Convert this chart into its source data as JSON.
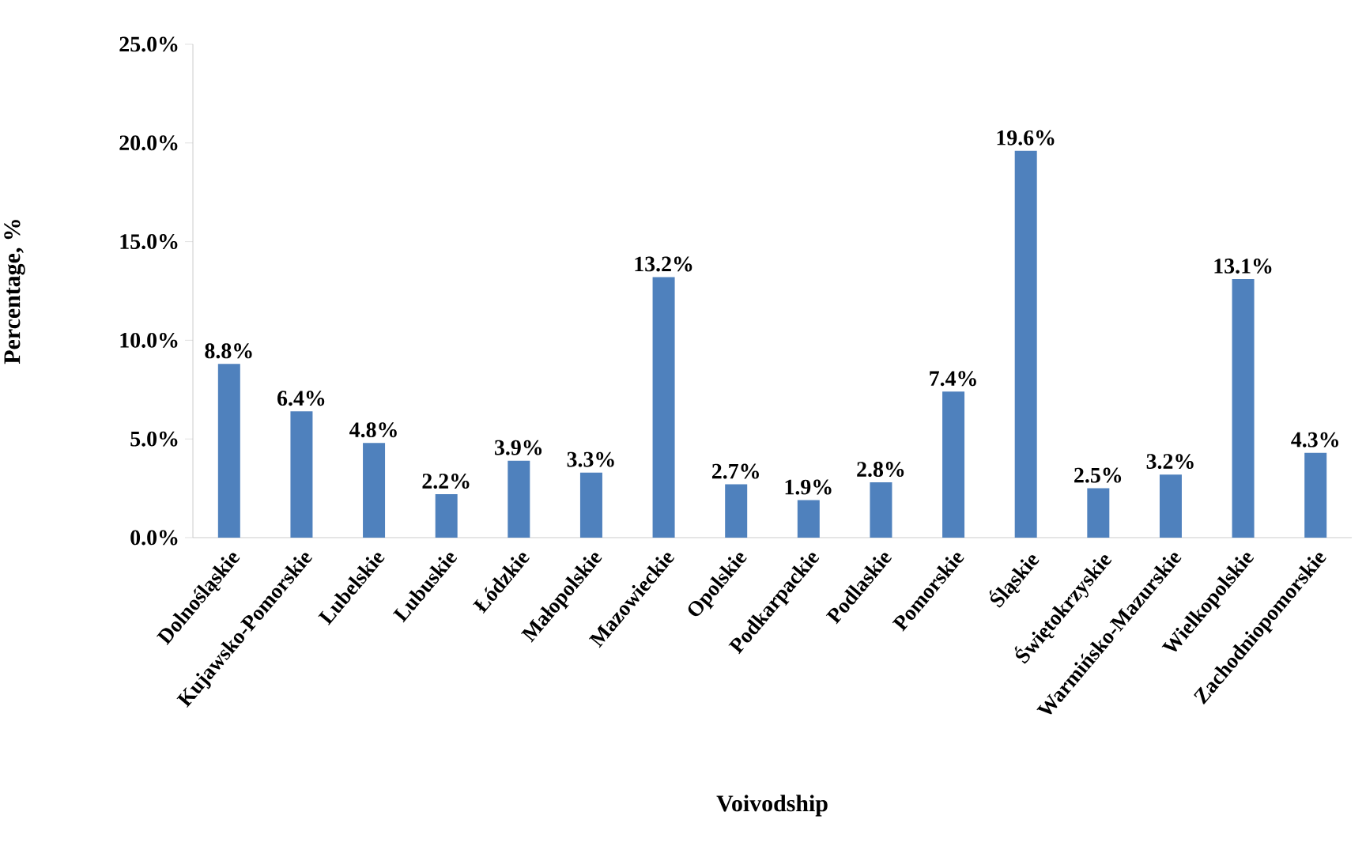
{
  "chart_data": {
    "type": "bar",
    "xlabel": "Voivodship",
    "ylabel": "Percentage, %",
    "categories": [
      "Dolnośląskie",
      "Kujawsko-Pomorskie",
      "Lubelskie",
      "Lubuskie",
      "Łódzkie",
      "Małopolskie",
      "Mazowieckie",
      "Opolskie",
      "Podkarpackie",
      "Podlaskie",
      "Pomorskie",
      "Śląskie",
      "Świętokrzyskie",
      "Warmińsko-Mazurskie",
      "Wielkopolskie",
      "Zachodniopomorskie"
    ],
    "values": [
      8.8,
      6.4,
      4.8,
      2.2,
      3.9,
      3.3,
      13.2,
      2.7,
      1.9,
      2.8,
      7.4,
      19.6,
      2.5,
      3.2,
      13.1,
      4.3
    ],
    "value_labels": [
      "8.8%",
      "6.4%",
      "4.8%",
      "2.2%",
      "3.9%",
      "3.3%",
      "13.2%",
      "2.7%",
      "1.9%",
      "2.8%",
      "7.4%",
      "19.6%",
      "2.5%",
      "3.2%",
      "13.1%",
      "4.3%"
    ],
    "color": "#4f81bd",
    "ylim": [
      0,
      25
    ],
    "yticks": [
      {
        "value": 0,
        "label": "0.0%"
      },
      {
        "value": 5,
        "label": "5.0%"
      },
      {
        "value": 10,
        "label": "10.0%"
      },
      {
        "value": 15,
        "label": "15.0%"
      },
      {
        "value": 20,
        "label": "20.0%"
      },
      {
        "value": 25,
        "label": "25.0%"
      }
    ],
    "grid": false
  }
}
